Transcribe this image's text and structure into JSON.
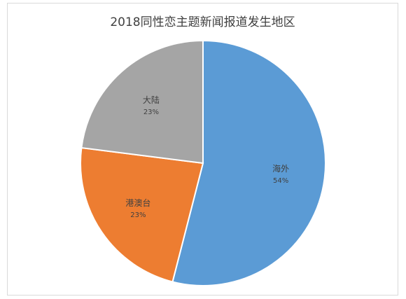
{
  "chart_data": {
    "type": "pie",
    "title": "2018同性恋主题新闻报道发生地区",
    "slices": [
      {
        "label": "海外",
        "value": 54,
        "pct_label": "54%",
        "color": "#5b9bd5"
      },
      {
        "label": "港澳台",
        "value": 23,
        "pct_label": "23%",
        "color": "#ed7d31"
      },
      {
        "label": "大陆",
        "value": 23,
        "pct_label": "23%",
        "color": "#a5a5a5"
      }
    ],
    "start_angle_deg": 0,
    "direction": "clockwise",
    "legend": "none",
    "data_labels": "inside"
  }
}
